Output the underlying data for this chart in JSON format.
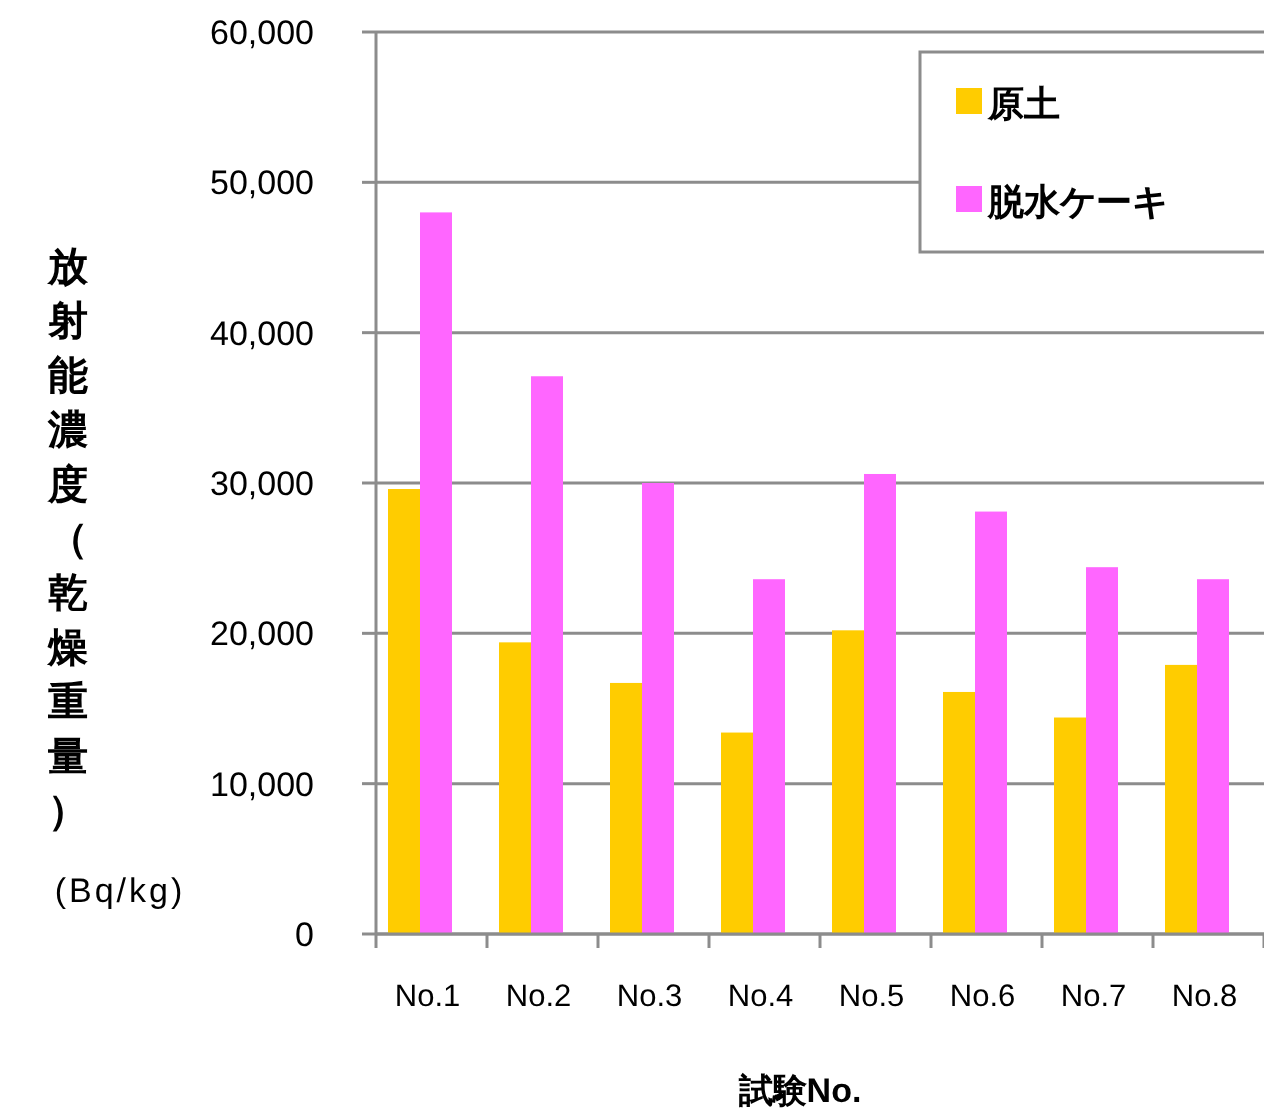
{
  "chart_data": {
    "type": "bar",
    "categories": [
      "No.1",
      "No.2",
      "No.3",
      "No.4",
      "No.5",
      "No.6",
      "No.7",
      "No.8"
    ],
    "series": [
      {
        "name": "原土",
        "color": "#ffcc00",
        "values": [
          29600,
          19400,
          16700,
          13400,
          20200,
          16100,
          14400,
          17900
        ]
      },
      {
        "name": "脱水ケーキ",
        "color": "#ff66ff",
        "values": [
          48000,
          37100,
          30000,
          23600,
          30600,
          28100,
          24400,
          23600
        ]
      }
    ],
    "ylim": [
      0,
      60000
    ],
    "yticks": [
      0,
      {
        "value": 10000,
        "label": "10,000"
      },
      {
        "value": 20000,
        "label": "20,000"
      },
      {
        "value": 30000,
        "label": "30,000"
      },
      {
        "value": 40000,
        "label": "40,000"
      },
      {
        "value": 50000,
        "label": "50,000"
      },
      {
        "value": 60000,
        "label": "60,000"
      }
    ],
    "ylabel": "放射能濃度（乾燥重量）",
    "xlabel": "試験No.",
    "annotations": [
      "(Bq/kg)"
    ],
    "grid": "y",
    "legend": "top right"
  }
}
